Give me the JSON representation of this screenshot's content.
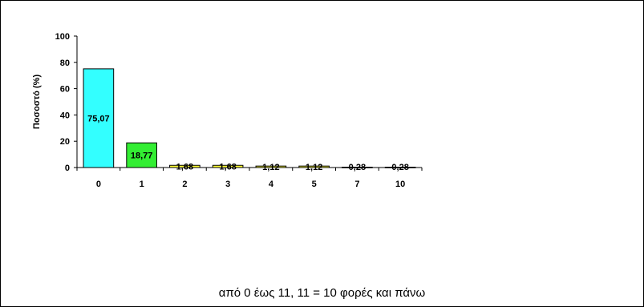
{
  "chart_data": {
    "type": "bar",
    "categories": [
      "0",
      "1",
      "2",
      "3",
      "4",
      "5",
      "7",
      "10"
    ],
    "values": [
      75.07,
      18.77,
      1.68,
      1.68,
      1.12,
      1.12,
      0.28,
      0.28
    ],
    "data_labels": [
      "75,07",
      "18,77",
      "1,68",
      "1,68",
      "1,12",
      "1,12",
      "0,28",
      "0,28"
    ],
    "bar_colors": [
      "#33FFFF",
      "#33EE33",
      "#FFFF33",
      "#FFFF33",
      "#FFFF33",
      "#FFFF33",
      "#FFFF33",
      "#FFFF33"
    ],
    "ylabel": "Ποσοστό (%)",
    "ylim": [
      0,
      100
    ],
    "yticks": [
      0,
      20,
      40,
      60,
      80,
      100
    ],
    "grid": false,
    "legend": "none"
  },
  "caption": "από 0 έως 11,  11 = 10 φορές και πάνω"
}
